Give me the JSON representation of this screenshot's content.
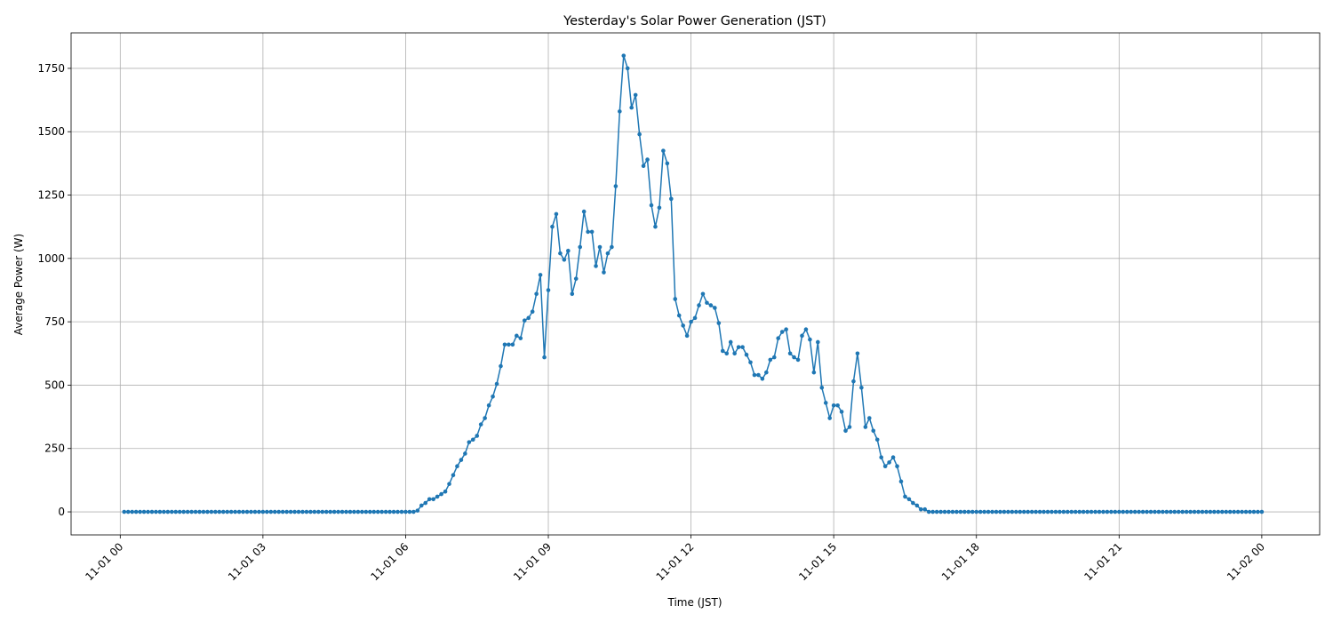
{
  "chart_data": {
    "type": "line",
    "title": "Yesterday's Solar Power Generation (JST)",
    "xlabel": "Time (JST)",
    "ylabel": "Average Power (W)",
    "color": "#1f77b4",
    "grid": true,
    "xlim": [
      -62,
      1513
    ],
    "ylim": [
      -91,
      1890
    ],
    "xticks": [
      {
        "value": 0,
        "label": "11-01 00"
      },
      {
        "value": 180,
        "label": "11-01 03"
      },
      {
        "value": 360,
        "label": "11-01 06"
      },
      {
        "value": 540,
        "label": "11-01 09"
      },
      {
        "value": 720,
        "label": "11-01 12"
      },
      {
        "value": 900,
        "label": "11-01 15"
      },
      {
        "value": 1080,
        "label": "11-01 18"
      },
      {
        "value": 1260,
        "label": "11-01 21"
      },
      {
        "value": 1440,
        "label": "11-02 00"
      }
    ],
    "yticks": [
      0,
      250,
      500,
      750,
      1000,
      1250,
      1500,
      1750
    ],
    "x": [
      5,
      10,
      15,
      20,
      25,
      30,
      35,
      40,
      45,
      50,
      55,
      60,
      65,
      70,
      75,
      80,
      85,
      90,
      95,
      100,
      105,
      110,
      115,
      120,
      125,
      130,
      135,
      140,
      145,
      150,
      155,
      160,
      165,
      170,
      175,
      180,
      185,
      190,
      195,
      200,
      205,
      210,
      215,
      220,
      225,
      230,
      235,
      240,
      245,
      250,
      255,
      260,
      265,
      270,
      275,
      280,
      285,
      290,
      295,
      300,
      305,
      310,
      315,
      320,
      325,
      330,
      335,
      340,
      345,
      350,
      355,
      360,
      365,
      370,
      375,
      380,
      385,
      390,
      395,
      400,
      405,
      410,
      415,
      420,
      425,
      430,
      435,
      440,
      445,
      450,
      455,
      460,
      465,
      470,
      475,
      480,
      485,
      490,
      495,
      500,
      505,
      510,
      515,
      520,
      525,
      530,
      535,
      540,
      545,
      550,
      555,
      560,
      565,
      570,
      575,
      580,
      585,
      590,
      595,
      600,
      605,
      610,
      615,
      620,
      625,
      630,
      635,
      640,
      645,
      650,
      655,
      660,
      665,
      670,
      675,
      680,
      685,
      690,
      695,
      700,
      705,
      710,
      715,
      720,
      725,
      730,
      735,
      740,
      745,
      750,
      755,
      760,
      765,
      770,
      775,
      780,
      785,
      790,
      795,
      800,
      805,
      810,
      815,
      820,
      825,
      830,
      835,
      840,
      845,
      850,
      855,
      860,
      865,
      870,
      875,
      880,
      885,
      890,
      895,
      900,
      905,
      910,
      915,
      920,
      925,
      930,
      935,
      940,
      945,
      950,
      955,
      960,
      965,
      970,
      975,
      980,
      985,
      990,
      995,
      1000,
      1005,
      1010,
      1015,
      1020,
      1025,
      1030,
      1035,
      1040,
      1045,
      1050,
      1055,
      1060,
      1065,
      1070,
      1075,
      1080,
      1085,
      1090,
      1095,
      1100,
      1105,
      1110,
      1115,
      1120,
      1125,
      1130,
      1135,
      1140,
      1145,
      1150,
      1155,
      1160,
      1165,
      1170,
      1175,
      1180,
      1185,
      1190,
      1195,
      1200,
      1205,
      1210,
      1215,
      1220,
      1225,
      1230,
      1235,
      1240,
      1245,
      1250,
      1255,
      1260,
      1265,
      1270,
      1275,
      1280,
      1285,
      1290,
      1295,
      1300,
      1305,
      1310,
      1315,
      1320,
      1325,
      1330,
      1335,
      1340,
      1345,
      1350,
      1355,
      1360,
      1365,
      1370,
      1375,
      1380,
      1385,
      1390,
      1395,
      1400,
      1405,
      1410,
      1415,
      1420,
      1425,
      1430,
      1435,
      1440
    ],
    "values": [
      0,
      0,
      0,
      0,
      0,
      0,
      0,
      0,
      0,
      0,
      0,
      0,
      0,
      0,
      0,
      0,
      0,
      0,
      0,
      0,
      0,
      0,
      0,
      0,
      0,
      0,
      0,
      0,
      0,
      0,
      0,
      0,
      0,
      0,
      0,
      0,
      0,
      0,
      0,
      0,
      0,
      0,
      0,
      0,
      0,
      0,
      0,
      0,
      0,
      0,
      0,
      0,
      0,
      0,
      0,
      0,
      0,
      0,
      0,
      0,
      0,
      0,
      0,
      0,
      0,
      0,
      0,
      0,
      0,
      0,
      0,
      0,
      0,
      0,
      5,
      25,
      35,
      50,
      50,
      60,
      70,
      80,
      110,
      145,
      180,
      205,
      230,
      275,
      285,
      300,
      345,
      370,
      420,
      455,
      505,
      575,
      660,
      660,
      660,
      695,
      685,
      755,
      765,
      790,
      860,
      935,
      610,
      875,
      1125,
      1175,
      1020,
      995,
      1030,
      860,
      920,
      1045,
      1185,
      1105,
      1105,
      970,
      1045,
      945,
      1020,
      1045,
      1285,
      1580,
      1800,
      1750,
      1595,
      1645,
      1490,
      1365,
      1390,
      1210,
      1125,
      1200,
      1425,
      1375,
      1235,
      840,
      775,
      735,
      695,
      750,
      765,
      815,
      860,
      825,
      815,
      805,
      745,
      635,
      625,
      670,
      625,
      650,
      650,
      620,
      590,
      540,
      540,
      525,
      550,
      600,
      610,
      685,
      710,
      720,
      625,
      610,
      600,
      695,
      720,
      680,
      550,
      670,
      490,
      430,
      370,
      420,
      420,
      395,
      320,
      335,
      515,
      625,
      490,
      335,
      370,
      320,
      285,
      215,
      180,
      195,
      215,
      180,
      120,
      60,
      50,
      35,
      25,
      10,
      10,
      0,
      0,
      0,
      0,
      0,
      0,
      0,
      0,
      0,
      0,
      0,
      0,
      0,
      0,
      0,
      0,
      0,
      0,
      0,
      0,
      0,
      0,
      0,
      0,
      0,
      0,
      0,
      0,
      0,
      0,
      0,
      0,
      0,
      0,
      0,
      0,
      0,
      0,
      0,
      0,
      0,
      0,
      0,
      0,
      0,
      0,
      0,
      0,
      0,
      0,
      0,
      0,
      0,
      0,
      0,
      0,
      0,
      0,
      0,
      0,
      0,
      0,
      0,
      0,
      0,
      0,
      0,
      0,
      0,
      0,
      0,
      0,
      0,
      0,
      0,
      0,
      0,
      0,
      0,
      0,
      0,
      0,
      0,
      0,
      0
    ]
  }
}
